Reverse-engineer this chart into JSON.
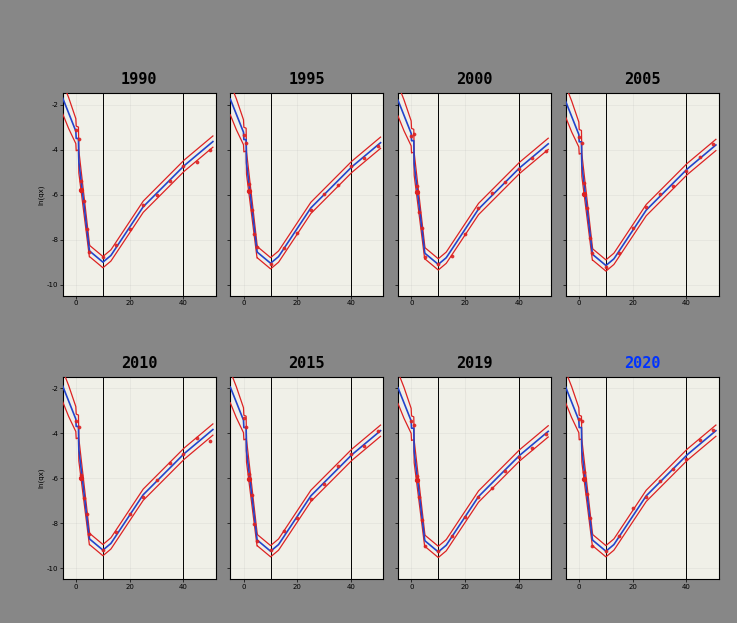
{
  "years": [
    "1990",
    "1995",
    "2000",
    "2005",
    "2010",
    "2015",
    "2019",
    "2020"
  ],
  "background_color": "#878787",
  "plot_bg_color": "#f0f0e8",
  "figure_size": [
    7.37,
    6.23
  ],
  "dpi": 100,
  "title_fontsize": 11,
  "vlines": [
    10,
    40
  ],
  "x_range": [
    -5,
    52
  ],
  "y_range": [
    -10.5,
    -1.5
  ],
  "ylabel": "ln(qx)",
  "xlabel_ticks": [
    0,
    20,
    40
  ],
  "yticks_labels": [
    "-2",
    "-4",
    "-6",
    "-8",
    "-10"
  ],
  "yticks_vals": [
    -2,
    -4,
    -6,
    -8,
    -10
  ],
  "central_color": "#2244cc",
  "band_color": "#dd2222",
  "dot_color": "#dd2222",
  "central_lw": 1.2,
  "band_lw": 0.9,
  "highlight_year": "2020",
  "highlight_color": "#0033ff",
  "n_cols": 4,
  "n_rows": 2
}
